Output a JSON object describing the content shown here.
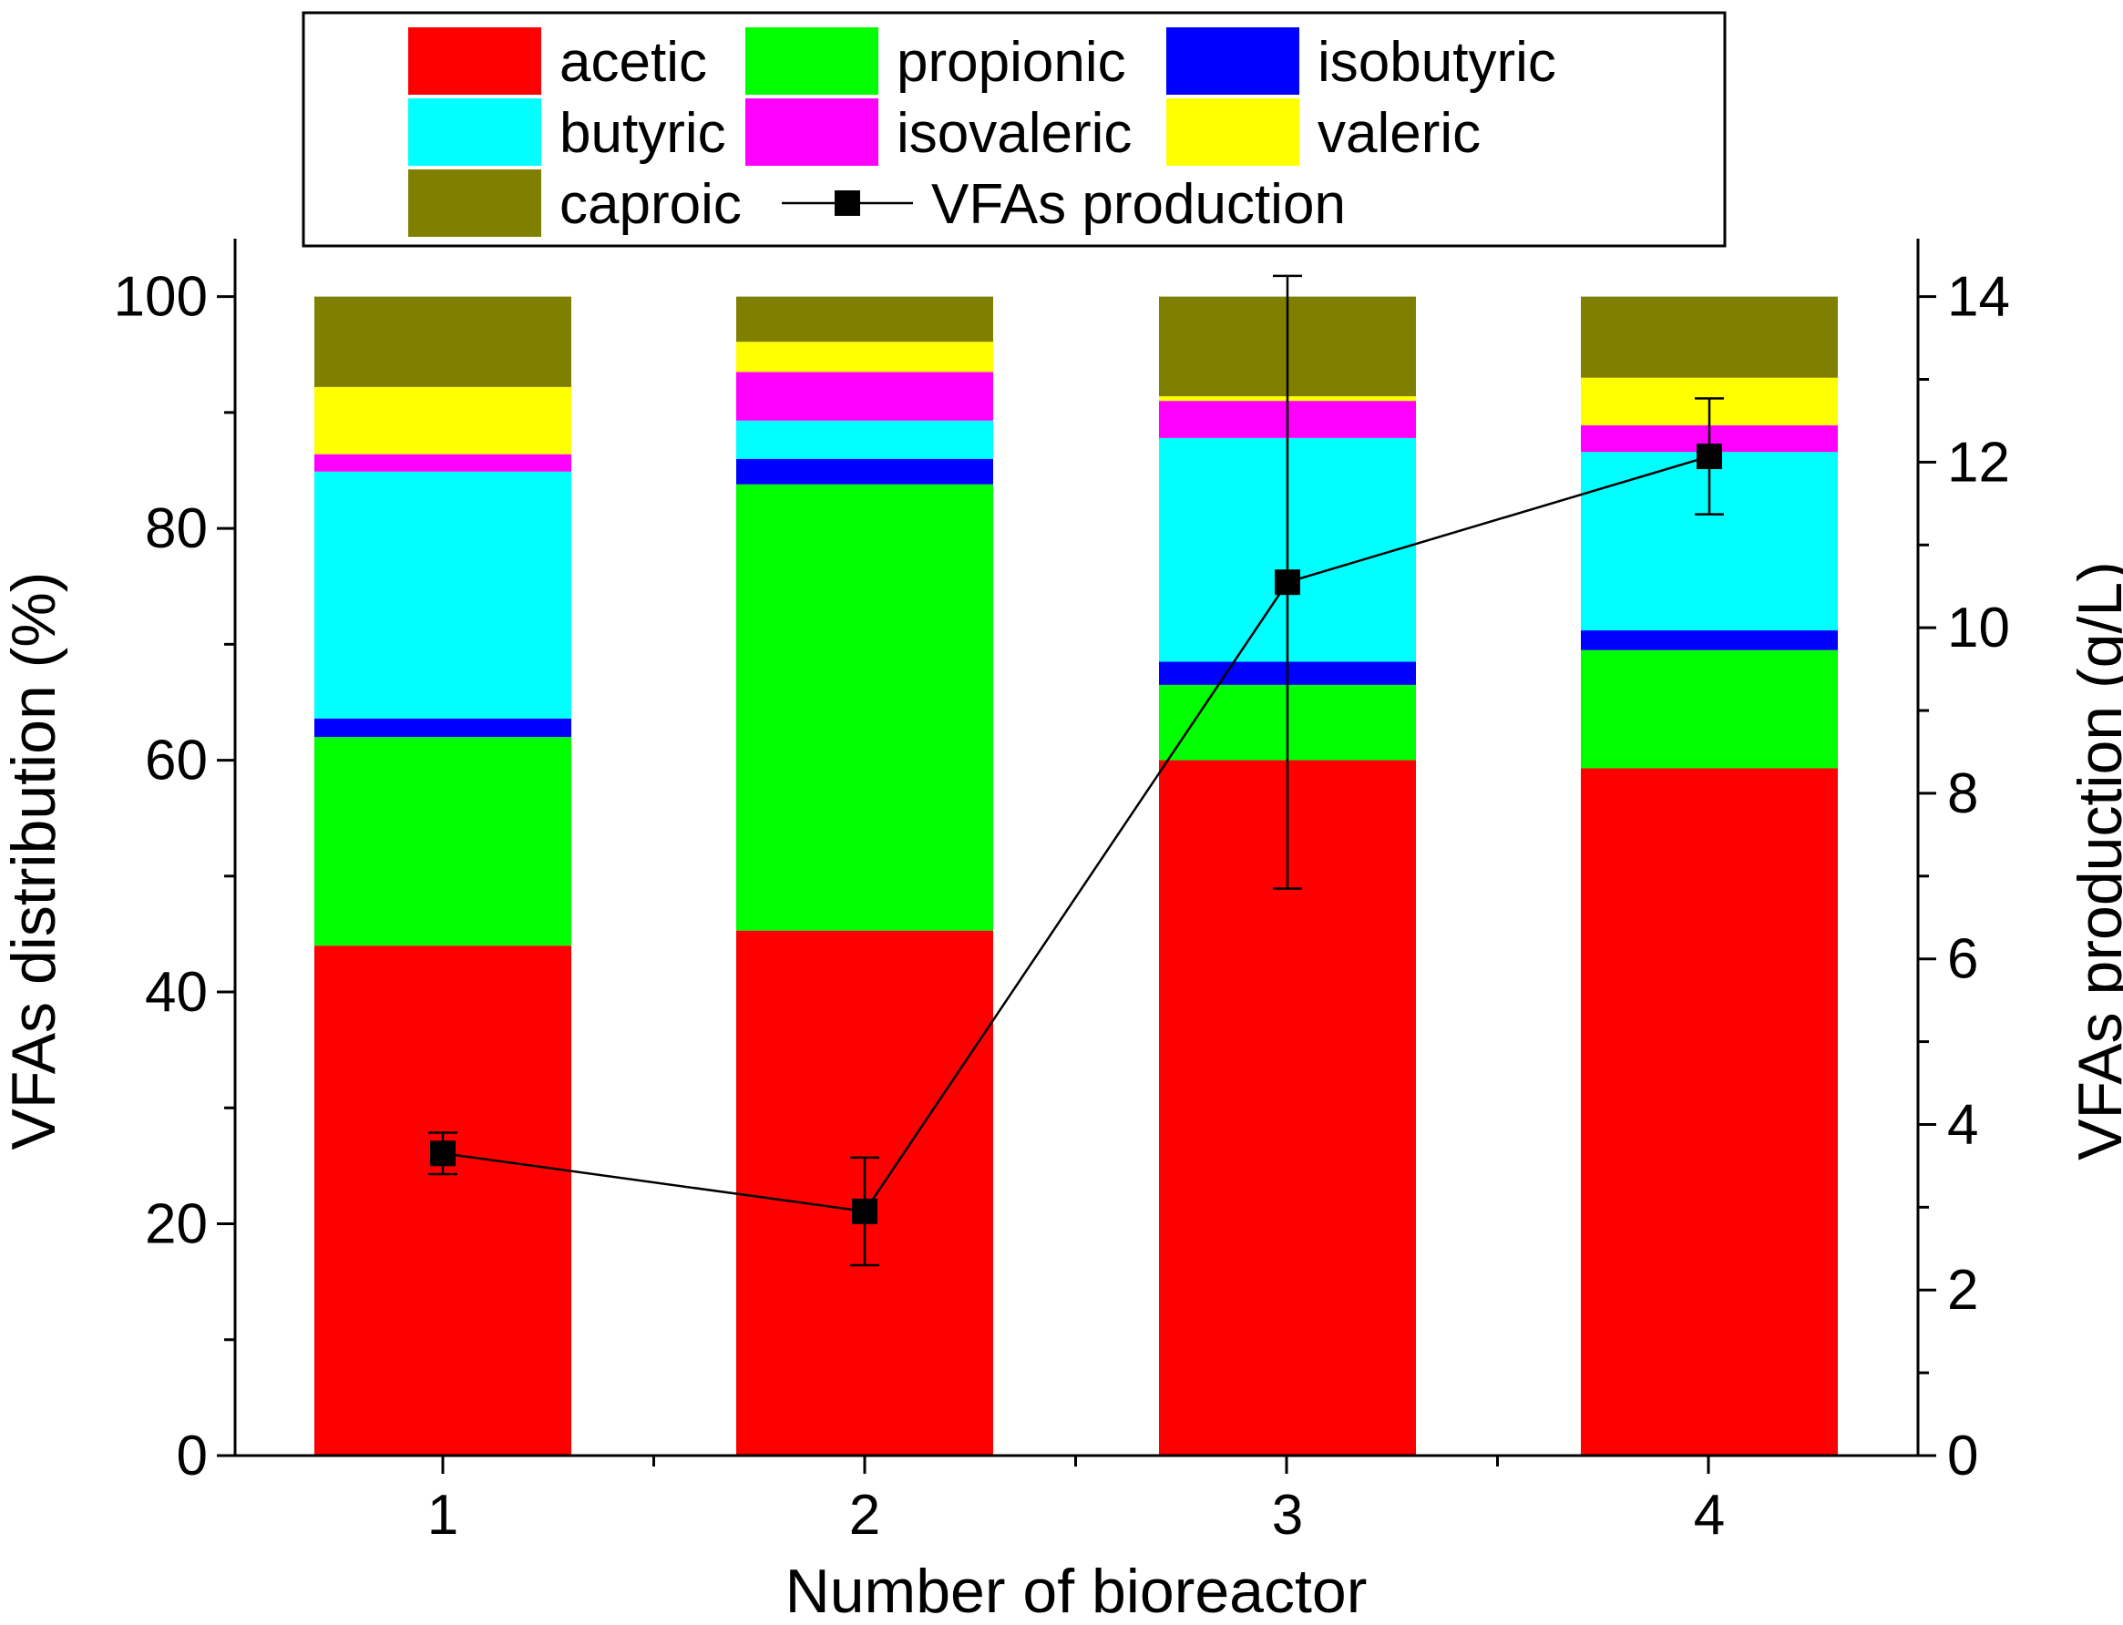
{
  "chart_data": {
    "type": "bar",
    "stacked": true,
    "title": "",
    "xlabel": "Number of bioreactor",
    "ylabel": "VFAs distribution (%)",
    "ylabel_right": "VFAs production (g/L)",
    "categories": [
      "1",
      "2",
      "3",
      "4"
    ],
    "ylim": [
      0,
      105
    ],
    "ylim_right": [
      0,
      14.7
    ],
    "yticks": [
      "0",
      "20",
      "40",
      "60",
      "80",
      "100"
    ],
    "yticks_right": [
      "0",
      "2",
      "4",
      "6",
      "8",
      "10",
      "12",
      "14"
    ],
    "series": [
      {
        "name": "acetic",
        "color": "#ff0000",
        "values": [
          44.0,
          45.3,
          60.0,
          59.3
        ]
      },
      {
        "name": "propionic",
        "color": "#00ff00",
        "values": [
          18.0,
          38.5,
          6.5,
          10.2
        ]
      },
      {
        "name": "isobutyric",
        "color": "#0000ff",
        "values": [
          1.6,
          2.2,
          2.0,
          1.7
        ]
      },
      {
        "name": "butyric",
        "color": "#00ffff",
        "values": [
          21.3,
          3.3,
          19.3,
          15.4
        ]
      },
      {
        "name": "isovaleric",
        "color": "#ff00ff",
        "values": [
          1.5,
          4.2,
          3.2,
          2.3
        ]
      },
      {
        "name": "valeric",
        "color": "#ffff00",
        "values": [
          5.8,
          2.6,
          0.4,
          4.1
        ]
      },
      {
        "name": "caproic",
        "color": "#808000",
        "values": [
          7.8,
          3.9,
          8.6,
          7.0
        ]
      }
    ],
    "line_series": {
      "name": "VFAs production",
      "color": "#000000",
      "values": [
        3.65,
        2.95,
        10.55,
        12.07
      ],
      "errors": [
        0.25,
        0.65,
        3.7,
        0.7
      ]
    },
    "legend": {
      "placement": "top-center",
      "entries": [
        "acetic",
        "propionic",
        "isobutyric",
        "butyric",
        "isovaleric",
        "valeric",
        "caproic",
        "VFAs production"
      ]
    }
  }
}
